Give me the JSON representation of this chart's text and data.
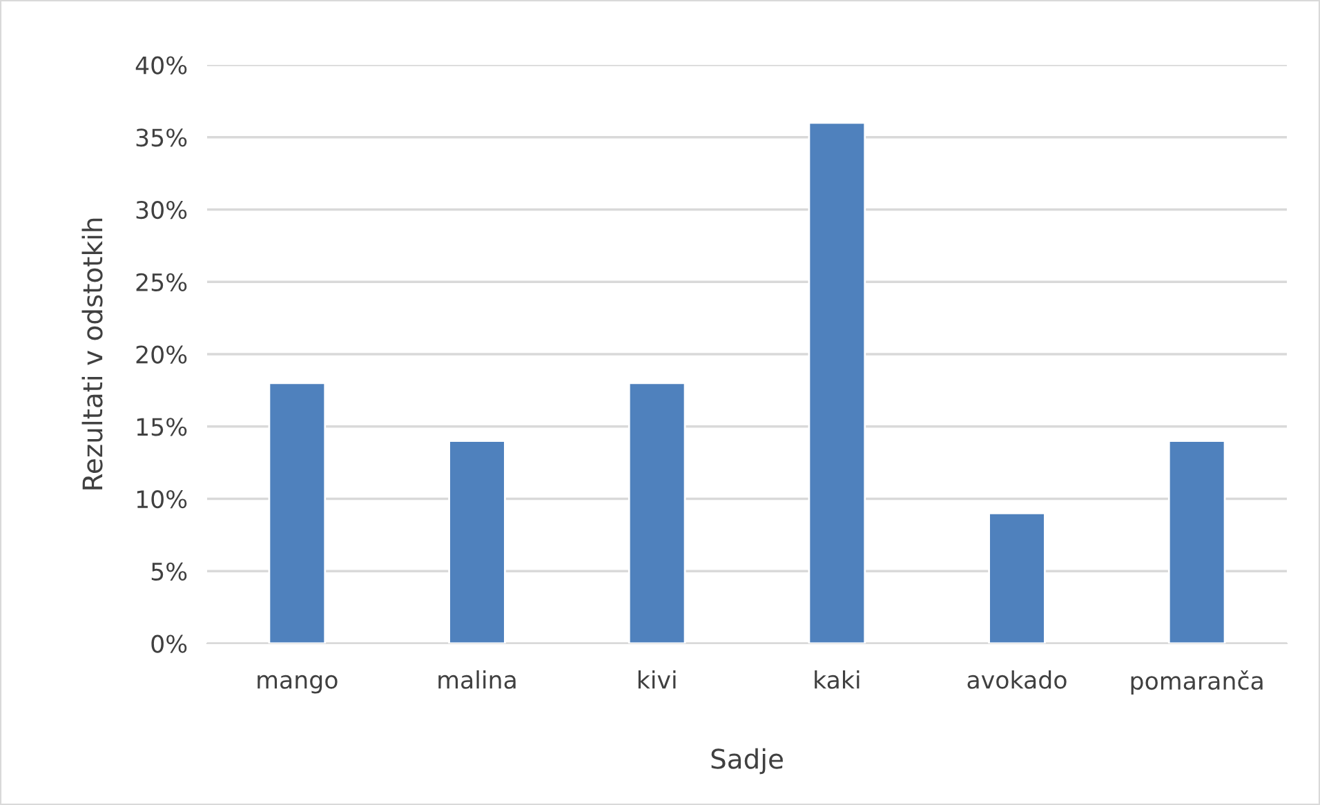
{
  "chart_data": {
    "type": "bar",
    "xlabel": "Sadje",
    "ylabel": "Rezultati v odstotkih",
    "categories": [
      "mango",
      "malina",
      "kivi",
      "kaki",
      "avokado",
      "pomaranča"
    ],
    "values": [
      18,
      14,
      18,
      36,
      9,
      14
    ],
    "color": "#4f81bd",
    "ylim": [
      0,
      40
    ],
    "yticks": [
      {
        "value": 0,
        "label": "0%"
      },
      {
        "value": 5,
        "label": "5%"
      },
      {
        "value": 10,
        "label": "10%"
      },
      {
        "value": 15,
        "label": "15%"
      },
      {
        "value": 20,
        "label": "20%"
      },
      {
        "value": 25,
        "label": "25%"
      },
      {
        "value": 30,
        "label": "30%"
      },
      {
        "value": 35,
        "label": "35%"
      },
      {
        "value": 40,
        "label": "40%"
      }
    ],
    "grid": "y",
    "legend": false
  }
}
